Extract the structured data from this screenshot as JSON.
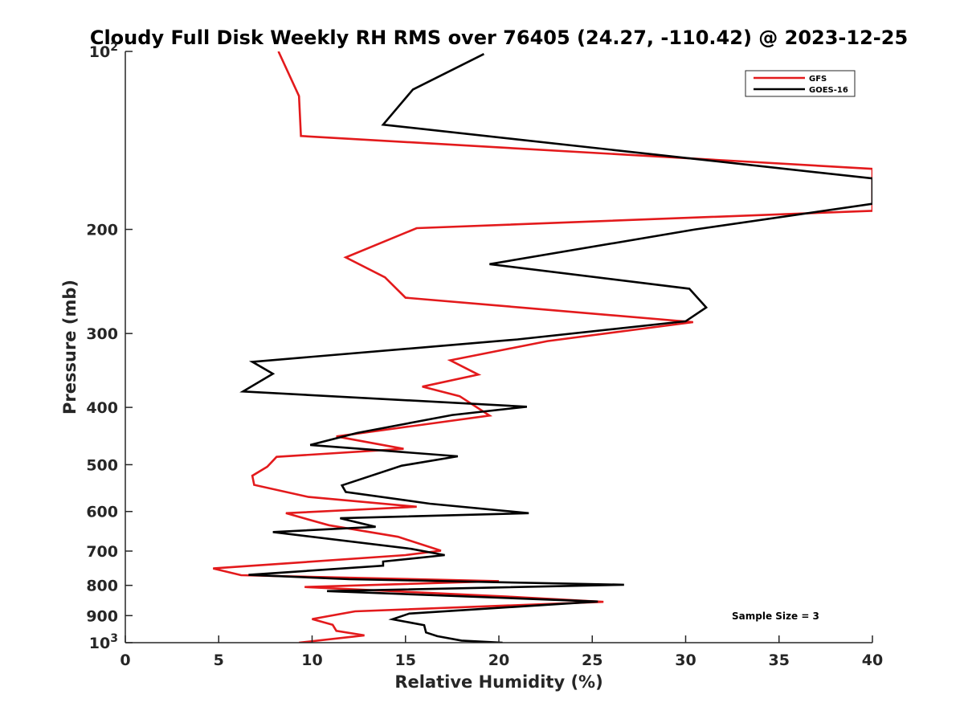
{
  "chart_data": {
    "type": "line",
    "title": "Cloudy Full Disk Weekly RH RMS over 76405 (24.27, -110.42) @ 2023-12-25",
    "xlabel": "Relative Humidity (%)",
    "ylabel": "Pressure (mb)",
    "xlim": [
      0,
      40
    ],
    "ylim": [
      100,
      1000
    ],
    "yscale": "log",
    "y_reversed": true,
    "grid": false,
    "legend_position": "top-right",
    "xticks": [
      "0",
      "5",
      "10",
      "15",
      "20",
      "25",
      "30",
      "35",
      "40"
    ],
    "yticks": [
      {
        "value": 100,
        "base": "10",
        "exp": "2"
      },
      {
        "value": 200,
        "label": "200"
      },
      {
        "value": 300,
        "label": "300"
      },
      {
        "value": 400,
        "label": "400"
      },
      {
        "value": 500,
        "label": "500"
      },
      {
        "value": 600,
        "label": "600"
      },
      {
        "value": 700,
        "label": "700"
      },
      {
        "value": 800,
        "label": "800"
      },
      {
        "value": 900,
        "label": "900"
      },
      {
        "value": 1000,
        "base": "10",
        "exp": "3"
      }
    ],
    "annotation": "Sample Size = 3",
    "series": [
      {
        "name": "GFS",
        "color": "#e31a1c",
        "points": [
          [
            8.2,
            100
          ],
          [
            9.3,
            119
          ],
          [
            9.4,
            139
          ],
          [
            40.0,
            158
          ],
          [
            40.0,
            186
          ],
          [
            15.6,
            199
          ],
          [
            11.8,
            223
          ],
          [
            13.9,
            241
          ],
          [
            15.0,
            261
          ],
          [
            30.4,
            287
          ],
          [
            22.6,
            309
          ],
          [
            17.4,
            333
          ],
          [
            18.9,
            352
          ],
          [
            15.9,
            369
          ],
          [
            17.9,
            383
          ],
          [
            19.5,
            413
          ],
          [
            11.3,
            448
          ],
          [
            14.9,
            470
          ],
          [
            8.1,
            485
          ],
          [
            7.6,
            504
          ],
          [
            6.8,
            522
          ],
          [
            6.9,
            541
          ],
          [
            9.8,
            567
          ],
          [
            15.6,
            589
          ],
          [
            8.6,
            604
          ],
          [
            10.9,
            633
          ],
          [
            14.6,
            662
          ],
          [
            16.9,
            699
          ],
          [
            15.0,
            711
          ],
          [
            4.7,
            749
          ],
          [
            6.2,
            769
          ],
          [
            20.0,
            787
          ],
          [
            9.6,
            805
          ],
          [
            20.5,
            836
          ],
          [
            25.6,
            853
          ],
          [
            12.3,
            885
          ],
          [
            10.0,
            912
          ],
          [
            11.1,
            933
          ],
          [
            11.3,
            955
          ],
          [
            12.8,
            972
          ],
          [
            9.3,
            1000
          ]
        ]
      },
      {
        "name": "GOES-16",
        "color": "#000000",
        "points": [
          [
            19.2,
            101
          ],
          [
            15.4,
            116
          ],
          [
            13.8,
            133
          ],
          [
            40.0,
            164
          ],
          [
            40.0,
            181
          ],
          [
            30.5,
            200
          ],
          [
            19.5,
            229
          ],
          [
            30.2,
            252
          ],
          [
            31.1,
            271
          ],
          [
            30.0,
            286
          ],
          [
            21.0,
            307
          ],
          [
            6.8,
            335
          ],
          [
            7.9,
            351
          ],
          [
            6.3,
            376
          ],
          [
            21.5,
            399
          ],
          [
            17.5,
            412
          ],
          [
            12.4,
            442
          ],
          [
            9.9,
            463
          ],
          [
            17.8,
            484
          ],
          [
            14.8,
            502
          ],
          [
            11.6,
            542
          ],
          [
            11.8,
            556
          ],
          [
            16.3,
            582
          ],
          [
            21.6,
            604
          ],
          [
            11.5,
            616
          ],
          [
            13.4,
            637
          ],
          [
            7.9,
            650
          ],
          [
            15.3,
            694
          ],
          [
            17.1,
            711
          ],
          [
            13.8,
            729
          ],
          [
            13.8,
            741
          ],
          [
            6.6,
            768
          ],
          [
            12.0,
            781
          ],
          [
            26.7,
            798
          ],
          [
            10.8,
            818
          ],
          [
            25.3,
            852
          ],
          [
            15.2,
            893
          ],
          [
            14.3,
            913
          ],
          [
            16.0,
            934
          ],
          [
            16.1,
            961
          ],
          [
            16.7,
            975
          ],
          [
            18.0,
            992
          ],
          [
            20.2,
            1000
          ]
        ]
      }
    ]
  }
}
